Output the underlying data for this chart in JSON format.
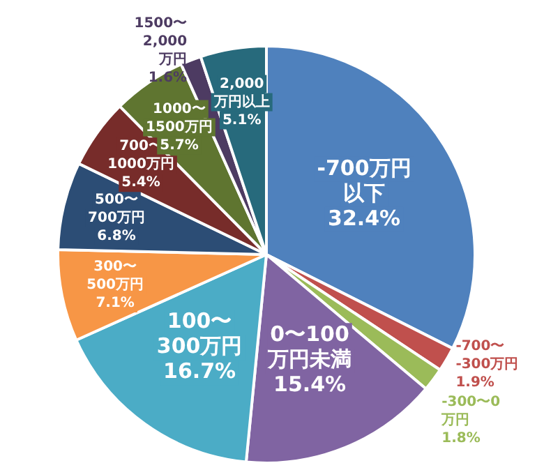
{
  "chart_data": {
    "type": "pie",
    "categories": [
      "-700万円以下",
      "-700〜-300万円",
      "-300〜0万円",
      "0〜100万円未満",
      "100〜300万円",
      "300〜500万円",
      "500〜700万円",
      "700〜1000万円",
      "1000〜1500万円",
      "1500〜2,000万円",
      "2,000万円以上"
    ],
    "values": [
      32.4,
      1.9,
      1.8,
      15.4,
      16.7,
      7.1,
      6.8,
      5.4,
      5.7,
      1.6,
      5.1
    ],
    "value_labels": [
      "32.4%",
      "1.9%",
      "1.8%",
      "15.4%",
      "16.7%",
      "7.1%",
      "6.8%",
      "5.4%",
      "5.7%",
      "1.6%",
      "5.1%"
    ],
    "colors": [
      "#4f81bd",
      "#c0504d",
      "#9bbb59",
      "#8064a2",
      "#4bacc6",
      "#f79646",
      "#2c4d75",
      "#772c2a",
      "#5f7530",
      "#4d3b62",
      "#276a7c"
    ],
    "legend": false
  }
}
